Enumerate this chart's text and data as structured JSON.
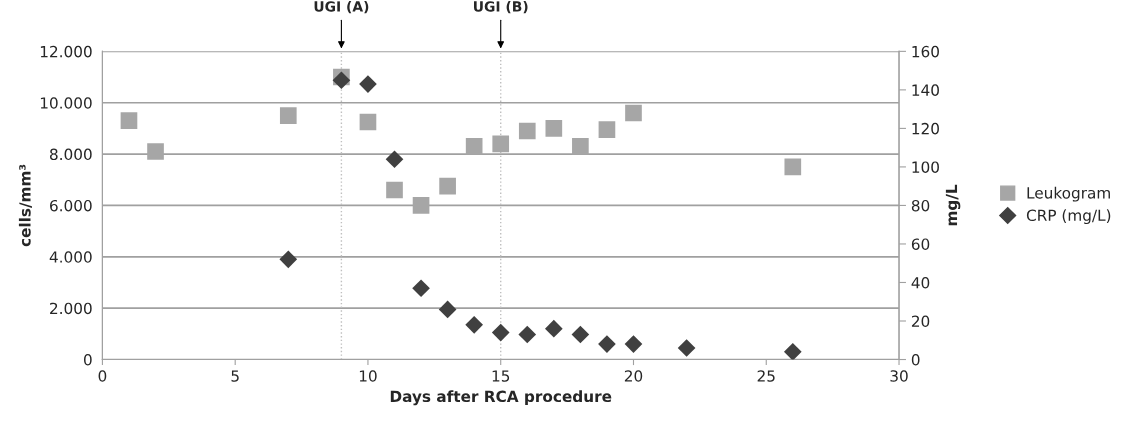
{
  "chart_data": {
    "type": "scatter",
    "xlabel": "Days after RCA procedure",
    "ylabel": "cells/mm³",
    "y2label": "mg/L",
    "xlim": [
      0,
      30
    ],
    "xticks": [
      0,
      5,
      10,
      15,
      20,
      25,
      30
    ],
    "ylim": [
      0,
      12000
    ],
    "yticks": [
      0,
      {
        "value": 2000,
        "label": "2.000"
      },
      {
        "value": 4000,
        "label": "4.000"
      },
      {
        "value": 6000,
        "label": "6.000"
      },
      {
        "value": 8000,
        "label": "8.000"
      },
      {
        "value": 10000,
        "label": "10.000"
      },
      {
        "value": 12000,
        "label": "12.000"
      }
    ],
    "y2lim": [
      0,
      160
    ],
    "y2ticks": [
      0,
      20,
      40,
      60,
      80,
      100,
      120,
      140,
      160
    ],
    "grid": "y",
    "legend": "right",
    "series": [
      {
        "name": "Leukogram",
        "color": "#a6a6a6",
        "marker": "square",
        "x": [
          1,
          2,
          7,
          9,
          10,
          11,
          12,
          13,
          14,
          15,
          16,
          17,
          18,
          19,
          20,
          26
        ],
        "values": [
          9300,
          8100,
          9500,
          11000,
          9250,
          6600,
          6000,
          6750,
          8300,
          8400,
          8900,
          9000,
          8300,
          8950,
          9600,
          7500
        ]
      },
      {
        "name": "CRP (mg/L)",
        "color": "#404040",
        "marker": "diamond",
        "axis": "y2",
        "x": [
          7,
          9,
          10,
          11,
          12,
          13,
          14,
          15,
          16,
          17,
          18,
          19,
          20,
          22,
          26
        ],
        "values": [
          52,
          145,
          143,
          104,
          37,
          26,
          18,
          14,
          13,
          16,
          13,
          8,
          8,
          6,
          4
        ]
      }
    ],
    "ref_lines": [
      {
        "axis": "x",
        "value": 9,
        "label": "UGI (A)",
        "color": "#bfbfbf",
        "line_style": "dotted"
      },
      {
        "axis": "x",
        "value": 15,
        "label": "UGI (B)",
        "color": "#bfbfbf",
        "line_style": "dotted"
      }
    ]
  }
}
